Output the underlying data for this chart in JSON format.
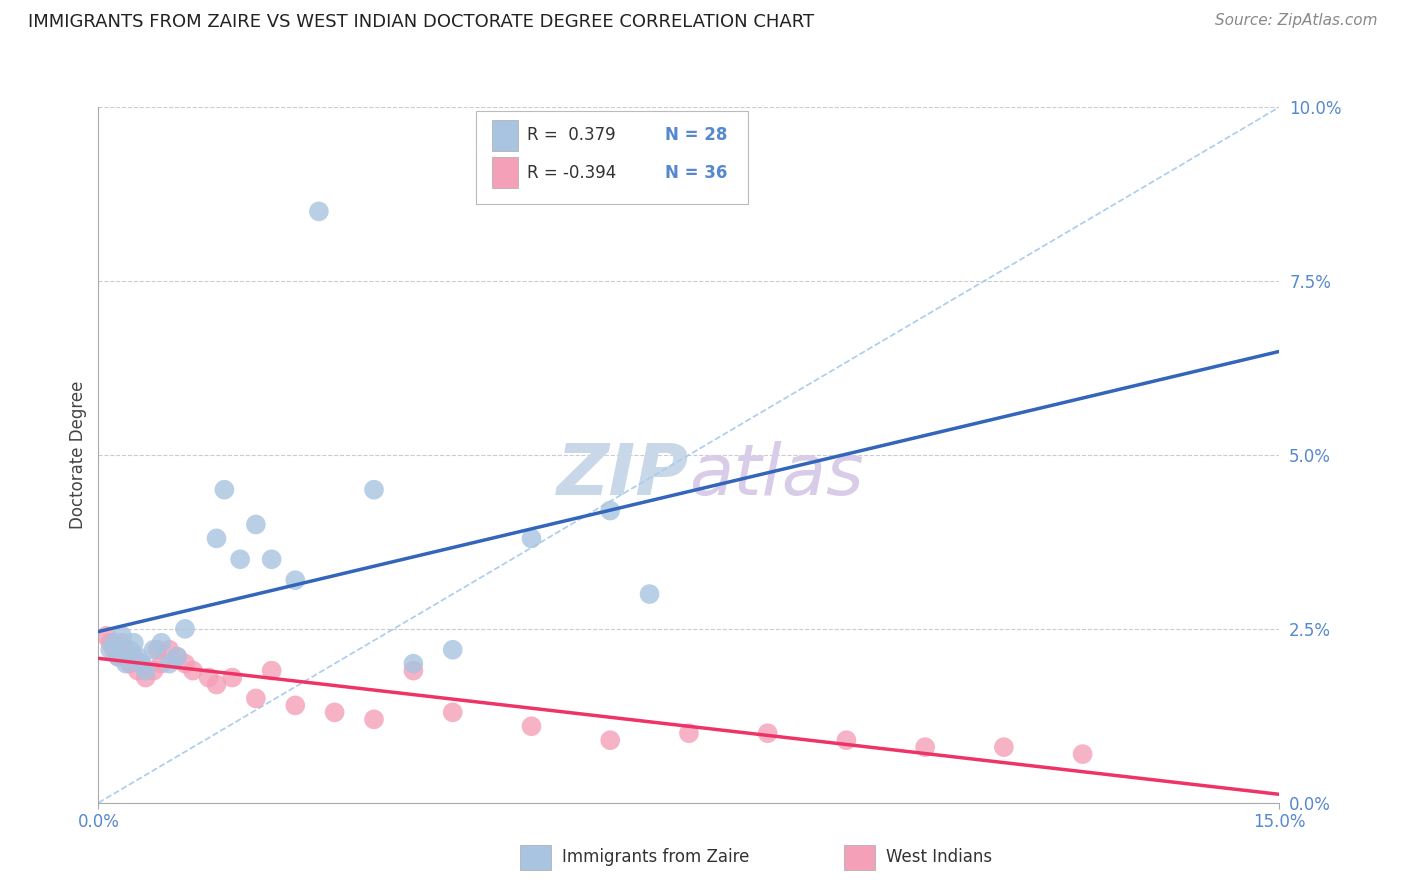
{
  "title": "IMMIGRANTS FROM ZAIRE VS WEST INDIAN DOCTORATE DEGREE CORRELATION CHART",
  "source": "Source: ZipAtlas.com",
  "ylabel": "Doctorate Degree",
  "legend_r1": "R =  0.379",
  "legend_n1": "N = 28",
  "legend_r2": "R = -0.394",
  "legend_n2": "N = 36",
  "blue_scatter_color": "#a8c4e0",
  "pink_scatter_color": "#f4a0b8",
  "blue_line_color": "#3366bb",
  "pink_line_color": "#ee3366",
  "diag_line_color": "#aaccee",
  "grid_color": "#cccccc",
  "bg_color": "#ffffff",
  "title_color": "#222222",
  "source_color": "#888888",
  "axis_label_color": "#5588cc",
  "ylabel_color": "#444444",
  "watermark_zip_color": "#c8d8e8",
  "watermark_atlas_color": "#d8cce8",
  "xlim": [
    0.0,
    15.0
  ],
  "ylim": [
    0.0,
    10.0
  ],
  "ytick_vals": [
    0.0,
    2.5,
    5.0,
    7.5,
    10.0
  ],
  "ytick_labels": [
    "0.0%",
    "2.5%",
    "5.0%",
    "7.5%",
    "10.0%"
  ],
  "xtick_vals": [
    0.0,
    15.0
  ],
  "xtick_labels": [
    "0.0%",
    "15.0%"
  ],
  "zaire_x": [
    0.15,
    0.2,
    0.25,
    0.3,
    0.35,
    0.4,
    0.45,
    0.5,
    0.55,
    0.6,
    0.7,
    0.8,
    0.9,
    1.0,
    1.1,
    1.5,
    1.6,
    2.0,
    2.2,
    2.5,
    3.5,
    4.0,
    4.5,
    5.5,
    6.5,
    7.0,
    1.8,
    2.8
  ],
  "zaire_y": [
    2.2,
    2.3,
    2.1,
    2.4,
    2.0,
    2.2,
    2.3,
    2.1,
    2.0,
    1.9,
    2.2,
    2.3,
    2.0,
    2.1,
    2.5,
    3.8,
    4.5,
    4.0,
    3.5,
    3.2,
    4.5,
    2.0,
    2.2,
    3.8,
    4.2,
    3.0,
    3.5,
    8.5
  ],
  "wi_x": [
    0.1,
    0.15,
    0.2,
    0.25,
    0.3,
    0.35,
    0.4,
    0.45,
    0.5,
    0.55,
    0.6,
    0.7,
    0.75,
    0.8,
    0.9,
    1.0,
    1.1,
    1.2,
    1.4,
    1.5,
    1.7,
    2.0,
    2.5,
    3.0,
    3.5,
    4.5,
    5.5,
    6.5,
    7.5,
    8.5,
    9.5,
    10.5,
    11.5,
    12.5,
    4.0,
    2.2
  ],
  "wi_y": [
    2.4,
    2.3,
    2.2,
    2.1,
    2.3,
    2.2,
    2.0,
    2.1,
    1.9,
    2.0,
    1.8,
    1.9,
    2.2,
    2.0,
    2.2,
    2.1,
    2.0,
    1.9,
    1.8,
    1.7,
    1.8,
    1.5,
    1.4,
    1.3,
    1.2,
    1.3,
    1.1,
    0.9,
    1.0,
    1.0,
    0.9,
    0.8,
    0.8,
    0.7,
    1.9,
    1.9
  ]
}
